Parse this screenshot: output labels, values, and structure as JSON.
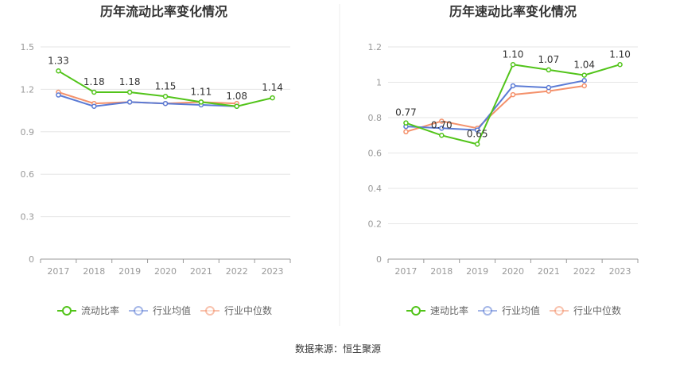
{
  "source_text": "数据来源：恒生聚源",
  "chart_data": [
    {
      "type": "line",
      "title": "历年流动比率变化情况",
      "categories": [
        "2017",
        "2018",
        "2019",
        "2020",
        "2021",
        "2022",
        "2023"
      ],
      "ylim": [
        0,
        1.5
      ],
      "yticks": [
        "0",
        "0.3",
        "0.6",
        "0.9",
        "1.2",
        "1.5"
      ],
      "ytick_values": [
        0,
        0.3,
        0.6,
        0.9,
        1.2,
        1.5
      ],
      "grid": true,
      "legend_position": "bottom",
      "series": [
        {
          "name": "流动比率",
          "color": "#52c41a",
          "values": [
            1.33,
            1.18,
            1.18,
            1.15,
            1.11,
            1.08,
            1.14
          ],
          "labels": [
            "1.33",
            "1.18",
            "1.18",
            "1.15",
            "1.11",
            "1.08",
            "1.14"
          ]
        },
        {
          "name": "行业均值",
          "color": "#5b7bd5",
          "values": [
            1.16,
            1.08,
            1.11,
            1.1,
            1.09,
            1.08,
            null
          ]
        },
        {
          "name": "行业中位数",
          "color": "#f4916b",
          "values": [
            1.18,
            1.1,
            1.11,
            1.1,
            1.11,
            1.1,
            null
          ]
        }
      ]
    },
    {
      "type": "line",
      "title": "历年速动比率变化情况",
      "categories": [
        "2017",
        "2018",
        "2019",
        "2020",
        "2021",
        "2022",
        "2023"
      ],
      "ylim": [
        0,
        1.2
      ],
      "yticks": [
        "0",
        "0.2",
        "0.4",
        "0.6",
        "0.8",
        "1",
        "1.2"
      ],
      "ytick_values": [
        0,
        0.2,
        0.4,
        0.6,
        0.8,
        1.0,
        1.2
      ],
      "grid": true,
      "legend_position": "bottom",
      "series": [
        {
          "name": "速动比率",
          "color": "#52c41a",
          "values": [
            0.77,
            0.7,
            0.65,
            1.1,
            1.07,
            1.04,
            1.1
          ],
          "labels": [
            "0.77",
            "0.70",
            "0.65",
            "1.10",
            "1.07",
            "1.04",
            "1.10"
          ]
        },
        {
          "name": "行业均值",
          "color": "#5b7bd5",
          "values": [
            0.75,
            0.74,
            0.73,
            0.98,
            0.97,
            1.01,
            null
          ]
        },
        {
          "name": "行业中位数",
          "color": "#f4916b",
          "values": [
            0.72,
            0.78,
            0.74,
            0.93,
            0.95,
            0.98,
            null
          ]
        }
      ]
    }
  ]
}
